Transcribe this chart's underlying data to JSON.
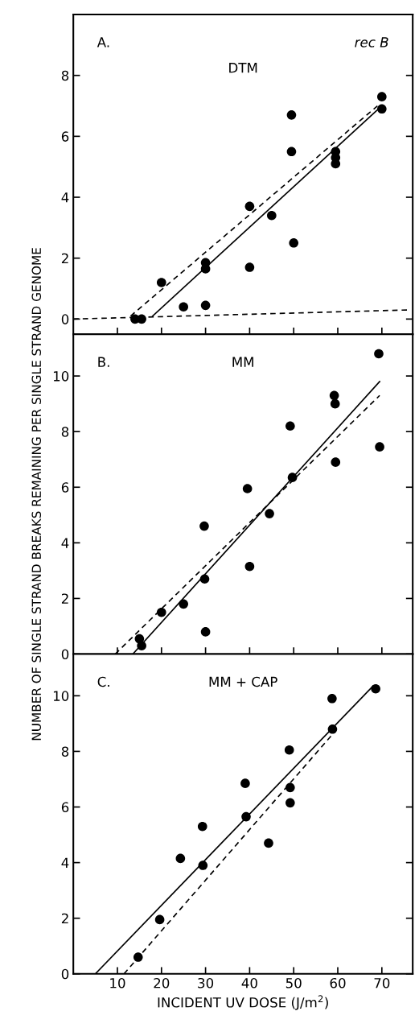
{
  "chart_data": [
    {
      "type": "scatter",
      "annotations": [
        "A.",
        "rec B",
        "DTM"
      ],
      "xlim": [
        0,
        77
      ],
      "ylim": [
        -0.5,
        10
      ],
      "xticks": [
        {
          "value": 10,
          "label": null
        },
        {
          "value": 20,
          "label": null
        },
        {
          "value": 30,
          "label": null
        },
        {
          "value": 40,
          "label": null
        },
        {
          "value": 50,
          "label": null
        },
        {
          "value": 60,
          "label": null
        },
        {
          "value": 70,
          "label": null
        }
      ],
      "yticks": [
        0,
        2,
        4,
        6,
        8
      ],
      "tick_labels": "y",
      "grid": false,
      "legend": false,
      "series": [
        {
          "type": "scatter",
          "marker": "circle",
          "color": "#000000",
          "x": [
            14,
            15.5,
            20,
            25,
            30,
            30,
            30,
            40,
            40,
            45,
            49.5,
            49.5,
            50,
            59.5,
            59.5,
            59.5,
            70,
            70
          ],
          "values": [
            0,
            0,
            1.2,
            0.4,
            0.45,
            1.85,
            1.65,
            3.7,
            1.7,
            3.4,
            6.7,
            5.5,
            2.5,
            5.5,
            5.3,
            5.1,
            7.3,
            6.9
          ]
        },
        {
          "type": "line",
          "line_style": "dashed",
          "color": "#000000",
          "x": [
            13,
            69
          ],
          "values": [
            0.1,
            7.0
          ]
        },
        {
          "type": "line",
          "line_style": "solid",
          "color": "#000000",
          "x": [
            18,
            70
          ],
          "values": [
            0.1,
            7.0
          ]
        },
        {
          "type": "line",
          "line_style": "dashed",
          "color": "#000000",
          "x": [
            0,
            76
          ],
          "values": [
            0,
            0.3
          ]
        }
      ]
    },
    {
      "type": "scatter",
      "annotations": [
        "B.",
        "MM"
      ],
      "ylabel": "NUMBER OF SINGLE STRAND BREAKS REMAINING PER SINGLE STRAND GENOME",
      "xlim": [
        0,
        77
      ],
      "ylim": [
        0,
        11.5
      ],
      "xticks": [
        {
          "value": 10,
          "label": null
        },
        {
          "value": 20,
          "label": null
        },
        {
          "value": 30,
          "label": null
        },
        {
          "value": 40,
          "label": null
        },
        {
          "value": 50,
          "label": null
        },
        {
          "value": 60,
          "label": null
        },
        {
          "value": 70,
          "label": null
        }
      ],
      "yticks": [
        0,
        2,
        4,
        6,
        8,
        10
      ],
      "tick_labels": "y",
      "grid": false,
      "legend": false,
      "series": [
        {
          "type": "scatter",
          "marker": "circle",
          "color": "#000000",
          "x": [
            15,
            15.5,
            20,
            25,
            29.7,
            29.8,
            30,
            39.5,
            40,
            44.5,
            49.2,
            49.7,
            59.2,
            59.4,
            59.5,
            69.5,
            69.3
          ],
          "values": [
            0.55,
            0.3,
            1.5,
            1.8,
            4.6,
            2.7,
            0.8,
            5.95,
            3.15,
            5.05,
            8.2,
            6.35,
            9.3,
            9.0,
            6.9,
            7.45,
            10.8
          ]
        },
        {
          "type": "line",
          "line_style": "solid",
          "color": "#000000",
          "x": [
            13.5,
            69.5
          ],
          "values": [
            0,
            9.8
          ]
        },
        {
          "type": "line",
          "line_style": "dashed",
          "color": "#000000",
          "x": [
            9.5,
            69.5
          ],
          "values": [
            0,
            9.3
          ]
        }
      ]
    },
    {
      "type": "scatter",
      "annotations": [
        "C.",
        "MM + CAP"
      ],
      "xlabel": "INCIDENT UV DOSE (J/m$^{2}$)",
      "xlim": [
        0,
        77
      ],
      "ylim": [
        0,
        11.5
      ],
      "xticks": [
        10,
        20,
        30,
        40,
        50,
        60,
        70
      ],
      "yticks": [
        0,
        2,
        4,
        6,
        8,
        10
      ],
      "grid": false,
      "legend": false,
      "series": [
        {
          "type": "scatter",
          "marker": "circle",
          "color": "#000000",
          "x": [
            14.7,
            19.6,
            24.3,
            29.3,
            29.4,
            39,
            39.2,
            44.3,
            49,
            49.2,
            49.2,
            58.7,
            58.8,
            68.6
          ],
          "values": [
            0.6,
            1.95,
            4.15,
            5.3,
            3.9,
            6.85,
            5.65,
            4.7,
            8.05,
            6.7,
            6.15,
            9.9,
            8.8,
            10.25
          ]
        },
        {
          "type": "line",
          "line_style": "solid",
          "color": "#000000",
          "x": [
            5,
            68
          ],
          "values": [
            0,
            10.35
          ]
        },
        {
          "type": "line",
          "line_style": "dashed",
          "color": "#000000",
          "x": [
            11.5,
            59
          ],
          "values": [
            0,
            8.65
          ]
        }
      ]
    }
  ]
}
